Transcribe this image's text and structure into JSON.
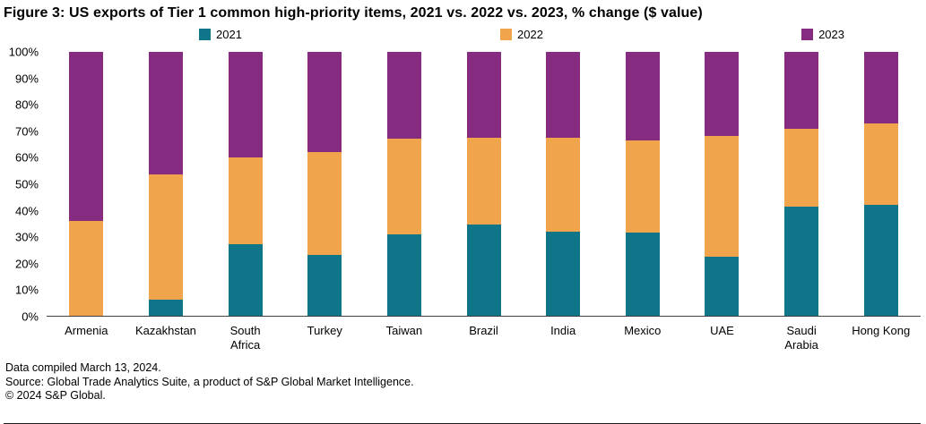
{
  "title": "Figure 3: US exports of Tier 1 common high-priority items, 2021 vs. 2022 vs. 2023, % change ($ value)",
  "footer": {
    "line1": "Data compiled March 13, 2024.",
    "line2": "Source: Global Trade Analytics Suite, a product of S&P Global Market Intelligence.",
    "line3": "© 2024 S&P Global."
  },
  "colors": {
    "series_2021": "#0f7589",
    "series_2022": "#f0a44c",
    "series_2023": "#852c80",
    "axis_line": "#404040"
  },
  "chart_data": {
    "type": "bar",
    "stacked": true,
    "percent_stacked": true,
    "title": "Figure 3: US exports of Tier 1 common high-priority items, 2021 vs. 2022 vs. 2023, % change ($ value)",
    "xlabel": "",
    "ylabel": "",
    "ylim": [
      0,
      100
    ],
    "grid": false,
    "legend_position": "top",
    "categories": [
      "Armenia",
      "Kazakhstan",
      "South Africa",
      "Turkey",
      "Taiwan",
      "Brazil",
      "India",
      "Mexico",
      "UAE",
      "Saudi Arabia",
      "Hong Kong"
    ],
    "category_labels": [
      "Armenia",
      "Kazakhstan",
      "South\nAfrica",
      "Turkey",
      "Taiwan",
      "Brazil",
      "India",
      "Mexico",
      "UAE",
      "Saudi\nArabia",
      "Hong Kong"
    ],
    "y_ticks": [
      "100%",
      "90%",
      "80%",
      "70%",
      "60%",
      "50%",
      "40%",
      "30%",
      "20%",
      "10%",
      "0%"
    ],
    "series": [
      {
        "name": "2021",
        "color": "#0f7589",
        "values": [
          0,
          6,
          27,
          23,
          31,
          34.5,
          32,
          31.5,
          22.5,
          41.5,
          42
        ]
      },
      {
        "name": "2022",
        "color": "#f0a44c",
        "values": [
          36,
          47.5,
          33,
          39,
          36,
          33,
          35.5,
          35,
          45.5,
          29.5,
          31
        ]
      },
      {
        "name": "2023",
        "color": "#852c80",
        "values": [
          64,
          46.5,
          40,
          38,
          33,
          32.5,
          32.5,
          33.5,
          32,
          29,
          27
        ]
      }
    ]
  }
}
